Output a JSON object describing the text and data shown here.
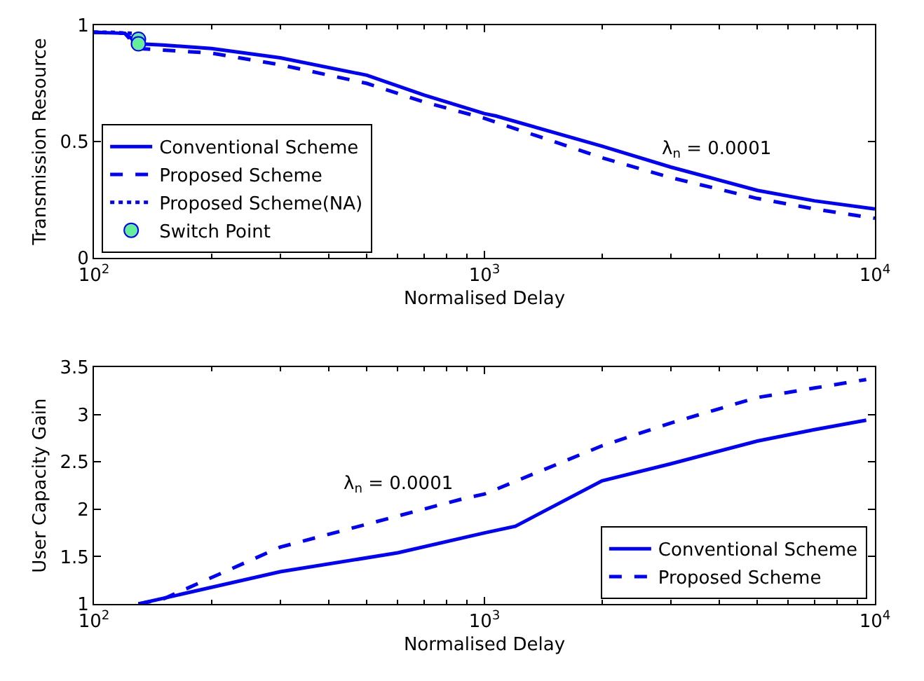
{
  "chart_data": [
    {
      "type": "line",
      "xlabel": "Normalised Delay",
      "ylabel": "Transmission Resource",
      "log": "x",
      "xlim": [
        100,
        10000
      ],
      "xticks": [
        {
          "value": 100,
          "label": "10$^{2}$"
        },
        {
          "value": 1000,
          "label": "10$^{3}$"
        },
        {
          "value": 10000,
          "label": "10$^{4}$"
        }
      ],
      "ylim": [
        0,
        1
      ],
      "yticks": [
        0,
        0.5,
        1
      ],
      "legend": "bottom left",
      "annotations": [
        "λ$_{n}$ = 0.0001"
      ],
      "series": [
        {
          "name": "Conventional Scheme",
          "color": "#0000ff",
          "line_style": "solid",
          "x": [
            100,
            120,
            130,
            150,
            200,
            300,
            500,
            700,
            1000,
            1070,
            2000,
            3000,
            5000,
            7000,
            10000
          ],
          "values": [
            0.97,
            0.965,
            0.92,
            0.915,
            0.9,
            0.86,
            0.785,
            0.7,
            0.62,
            0.61,
            0.48,
            0.39,
            0.29,
            0.245,
            0.21
          ]
        },
        {
          "name": "Proposed Scheme",
          "color": "#0000ff",
          "line_style": "dashed",
          "x": [
            100,
            120,
            130,
            200,
            300,
            500,
            700,
            1000,
            2000,
            3000,
            5000,
            7000,
            10000
          ],
          "values": [
            0.97,
            0.965,
            0.9,
            0.88,
            0.83,
            0.75,
            0.67,
            0.6,
            0.43,
            0.345,
            0.255,
            0.21,
            0.17
          ]
        },
        {
          "name": "Proposed Scheme(NA)",
          "color": "#0000ff",
          "line_style": "dotted",
          "x": [
            100,
            110,
            125,
            130
          ],
          "values": [
            0.97,
            0.97,
            0.965,
            0.9
          ]
        },
        {
          "name": "Switch Point",
          "type": "scatter",
          "marker": "circle",
          "color": "#66ee99",
          "x": [
            130,
            130
          ],
          "values": [
            0.94,
            0.92
          ]
        }
      ]
    },
    {
      "type": "line",
      "xlabel": "Normalised Delay",
      "ylabel": "User Capacity Gain",
      "log": "x",
      "xlim": [
        100,
        10000
      ],
      "xticks": [
        {
          "value": 100,
          "label": "10$^{2}$"
        },
        {
          "value": 1000,
          "label": "10$^{3}$"
        },
        {
          "value": 10000,
          "label": "10$^{4}$"
        }
      ],
      "ylim": [
        1,
        3.5
      ],
      "yticks": [
        1,
        1.5,
        2,
        2.5,
        3,
        3.5
      ],
      "legend": "bottom right",
      "annotations": [
        "λ$_{n}$ = 0.0001"
      ],
      "series": [
        {
          "name": "Conventional Scheme",
          "color": "#0000ff",
          "line_style": "solid",
          "x": [
            130,
            300,
            600,
            1000,
            1200,
            2000,
            3000,
            5000,
            7000,
            9500
          ],
          "values": [
            1.0,
            1.34,
            1.54,
            1.75,
            1.82,
            2.3,
            2.48,
            2.72,
            2.84,
            2.94
          ]
        },
        {
          "name": "Proposed Scheme",
          "color": "#0000ff",
          "line_style": "dashed",
          "x": [
            130,
            150,
            300,
            880,
            1000,
            2000,
            3000,
            5000,
            7000,
            9500
          ],
          "values": [
            1.0,
            1.05,
            1.6,
            2.11,
            2.16,
            2.67,
            2.91,
            3.18,
            3.28,
            3.37
          ]
        }
      ]
    }
  ]
}
